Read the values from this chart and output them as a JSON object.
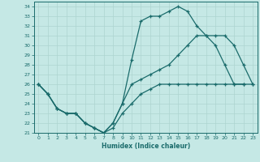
{
  "xlabel": "Humidex (Indice chaleur)",
  "xlim": [
    -0.5,
    23.5
  ],
  "ylim": [
    21,
    34.5
  ],
  "yticks": [
    21,
    22,
    23,
    24,
    25,
    26,
    27,
    28,
    29,
    30,
    31,
    32,
    33,
    34
  ],
  "xticks": [
    0,
    1,
    2,
    3,
    4,
    5,
    6,
    7,
    8,
    9,
    10,
    11,
    12,
    13,
    14,
    15,
    16,
    17,
    18,
    19,
    20,
    21,
    22,
    23
  ],
  "bg_color": "#c5e8e5",
  "line_color": "#1a6b6b",
  "grid_color": "#add4d0",
  "line1_x": [
    0,
    1,
    2,
    3,
    4,
    5,
    6,
    7,
    8,
    9,
    10,
    11,
    12,
    13,
    14,
    15,
    16,
    17,
    18,
    19,
    20,
    21,
    22,
    23
  ],
  "line1_y": [
    26,
    25,
    23.5,
    23,
    23,
    22,
    21.5,
    21,
    22,
    24,
    28.5,
    32.5,
    33,
    33,
    33.5,
    34,
    33.5,
    32,
    31,
    30,
    28,
    26,
    26,
    null
  ],
  "line2_x": [
    0,
    1,
    2,
    3,
    4,
    5,
    6,
    7,
    8,
    9,
    10,
    11,
    12,
    13,
    14,
    15,
    16,
    17,
    18,
    19,
    20,
    21,
    22,
    23
  ],
  "line2_y": [
    26,
    25,
    23.5,
    23,
    23,
    22,
    21.5,
    21,
    22,
    24,
    26,
    26.5,
    27,
    27.5,
    28,
    29,
    30,
    31,
    31,
    31,
    31,
    30,
    28,
    26
  ],
  "line3_x": [
    0,
    1,
    2,
    3,
    4,
    5,
    6,
    7,
    8,
    9,
    10,
    11,
    12,
    13,
    14,
    15,
    16,
    17,
    18,
    19,
    20,
    21,
    22,
    23
  ],
  "line3_y": [
    26,
    25,
    23.5,
    23,
    23,
    22,
    21.5,
    21,
    21.5,
    23,
    24,
    25,
    25.5,
    26,
    26,
    26,
    26,
    26,
    26,
    26,
    26,
    26,
    26,
    26
  ]
}
